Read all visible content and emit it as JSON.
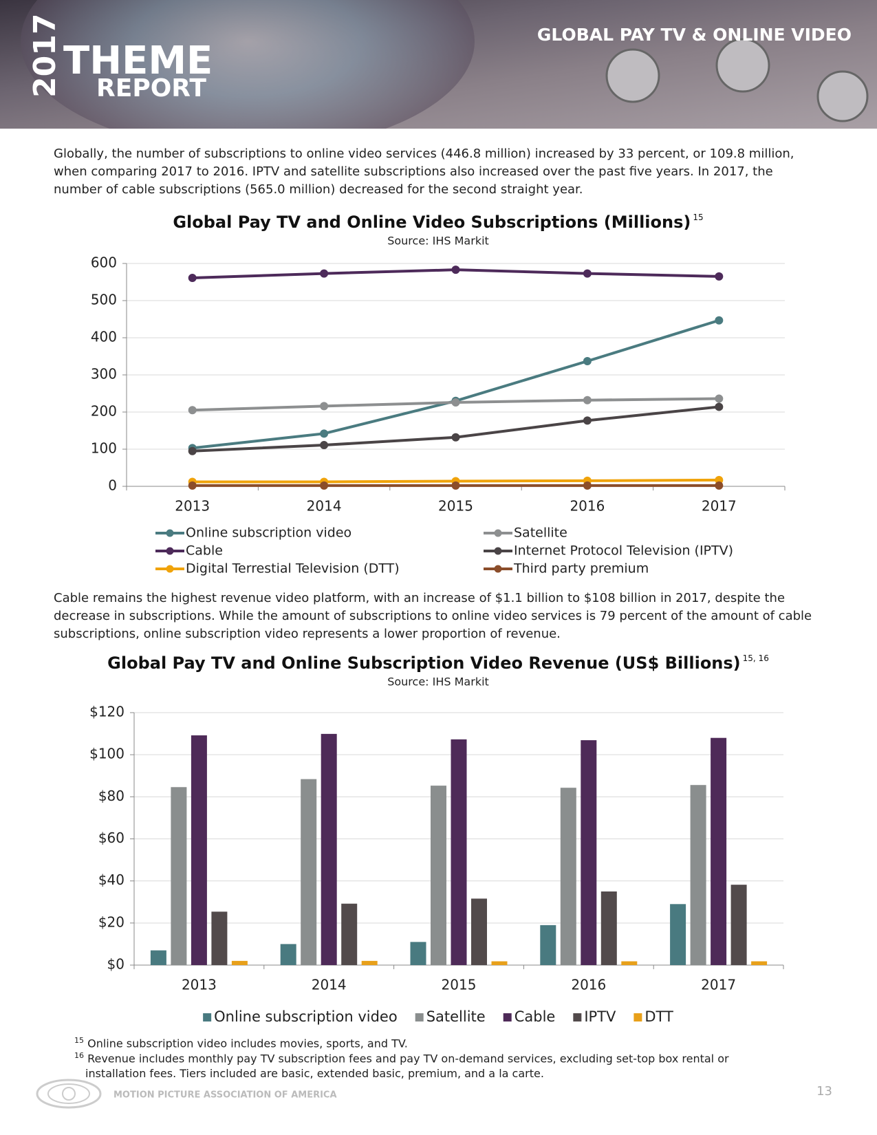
{
  "header": {
    "year": "2017",
    "theme": "THEME",
    "report": "REPORT",
    "section": "GLOBAL PAY TV & ONLINE VIDEO"
  },
  "paragraphs": [
    "Globally, the number of subscriptions to online video services (446.8 million) increased by 33 percent, or 109.8 million, when comparing 2017 to 2016. IPTV and satellite subscriptions also increased over the past five years. In 2017, the number of cable subscriptions (565.0 million) decreased for the second straight year.",
    "Cable remains the highest revenue video platform, with an increase of $1.1 billion to $108 billion in 2017, despite the decrease in subscriptions. While the amount of subscriptions to online video services is 79 percent of the amount of cable subscriptions, online subscription video represents a lower proportion of revenue."
  ],
  "chart_data": [
    {
      "type": "line",
      "title": "Global Pay TV and Online Video Subscriptions (Millions)",
      "title_note": "15",
      "subtitle": "Source: IHS Markit",
      "categories": [
        "2013",
        "2014",
        "2015",
        "2016",
        "2017"
      ],
      "series": [
        {
          "name": "Online subscription video",
          "color": "#4a7b80",
          "values": [
            103,
            142,
            230,
            337,
            446.8
          ]
        },
        {
          "name": "Satellite",
          "color": "#8d8f90",
          "values": [
            205,
            216,
            226,
            232,
            236
          ]
        },
        {
          "name": "Cable",
          "color": "#4d2a5a",
          "values": [
            561,
            573,
            583,
            573,
            565.0
          ]
        },
        {
          "name": "Internet Protocol Television (IPTV)",
          "color": "#4a4446",
          "values": [
            95,
            111,
            132,
            177,
            214
          ]
        },
        {
          "name": "Digital Terrestial Television (DTT)",
          "color": "#f0a30a",
          "values": [
            12,
            12,
            14,
            15,
            17
          ]
        },
        {
          "name": "Third party premium",
          "color": "#8b4d2a",
          "values": [
            2,
            2,
            2,
            2,
            2
          ]
        }
      ],
      "ylim": [
        0,
        600
      ],
      "yticks": [
        0,
        100,
        200,
        300,
        400,
        500,
        600
      ],
      "grid": true,
      "legend": "bottom"
    },
    {
      "type": "bar",
      "title": "Global Pay TV and Online Subscription Video Revenue (US$ Billions)",
      "title_note": "15, 16",
      "subtitle": "Source: IHS Markit",
      "categories": [
        "2013",
        "2014",
        "2015",
        "2016",
        "2017"
      ],
      "series": [
        {
          "name": "Online subscription video",
          "color": "#497a80",
          "values": [
            7,
            10,
            11,
            19,
            29
          ]
        },
        {
          "name": "Satellite",
          "color": "#8a8e8e",
          "values": [
            84.6,
            88.4,
            85.3,
            84.3,
            85.6
          ]
        },
        {
          "name": "Cable",
          "color": "#4e2a58",
          "values": [
            109.2,
            109.9,
            107.3,
            106.9,
            108.0
          ]
        },
        {
          "name": "IPTV",
          "color": "#524a4b",
          "values": [
            25.4,
            29.2,
            31.6,
            35.0,
            38.2
          ]
        },
        {
          "name": "DTT",
          "color": "#e8a01a",
          "values": [
            2,
            2,
            1.8,
            1.8,
            1.8
          ]
        }
      ],
      "ylim": [
        0,
        120
      ],
      "yticks": [
        {
          "value": 0,
          "label": "$0"
        },
        {
          "value": 20,
          "label": "$20"
        },
        {
          "value": 40,
          "label": "$40"
        },
        {
          "value": 60,
          "label": "$60"
        },
        {
          "value": 80,
          "label": "$80"
        },
        {
          "value": 100,
          "label": "$100"
        },
        {
          "value": 120,
          "label": "$120"
        }
      ],
      "grid": true,
      "legend": "bottom"
    }
  ],
  "footnotes": [
    {
      "number": "15",
      "text": "Online subscription video includes movies, sports, and TV."
    },
    {
      "number": "16",
      "text": "Revenue includes monthly pay TV subscription fees and pay TV on-demand services, excluding set-top box rental or installation fees. Tiers included are basic, extended basic, premium, and a la carte."
    }
  ],
  "footer": {
    "organization": "MOTION PICTURE ASSOCIATION OF AMERICA",
    "page": "13"
  }
}
